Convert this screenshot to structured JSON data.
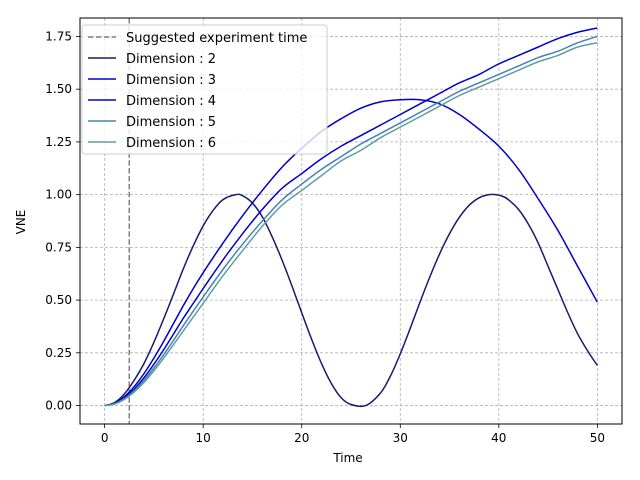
{
  "chart_data": {
    "type": "line",
    "title": "",
    "xlabel": "Time",
    "ylabel": "VNE",
    "xlim": [
      -2.5,
      52.5
    ],
    "ylim": [
      -0.0875,
      1.8375
    ],
    "xticks": [
      0,
      10,
      20,
      30,
      40,
      50
    ],
    "yticks": [
      0.0,
      0.25,
      0.5,
      0.75,
      1.0,
      1.25,
      1.5,
      1.75
    ],
    "xtick_labels": [
      "0",
      "10",
      "20",
      "30",
      "40",
      "50"
    ],
    "ytick_labels": [
      "0.00",
      "0.25",
      "0.50",
      "0.75",
      "1.00",
      "1.25",
      "1.50",
      "1.75"
    ],
    "grid": true,
    "legend_position": "top-left",
    "suggested_time": {
      "label": "Suggested experiment time",
      "x": 2.5,
      "color": "#808080"
    },
    "series": [
      {
        "name": "Dimension : 2",
        "color": "#191970",
        "x": [
          0,
          1,
          2,
          3,
          4,
          5,
          6,
          7,
          8,
          9,
          10,
          11,
          12,
          13.3,
          14,
          15,
          16,
          17,
          18,
          19,
          20,
          21,
          22,
          23,
          24,
          25,
          26.5,
          28,
          29,
          30,
          31,
          32,
          33,
          34,
          35,
          36,
          37,
          38,
          39,
          39.7,
          40.5,
          41,
          42,
          43,
          44,
          45,
          46,
          47,
          48,
          49,
          50
        ],
        "values": [
          0.0,
          0.014,
          0.055,
          0.12,
          0.2,
          0.3,
          0.412,
          0.53,
          0.65,
          0.758,
          0.852,
          0.925,
          0.976,
          1.0,
          0.995,
          0.96,
          0.895,
          0.8,
          0.69,
          0.568,
          0.44,
          0.315,
          0.2,
          0.105,
          0.037,
          0.005,
          0.0,
          0.06,
          0.14,
          0.245,
          0.365,
          0.49,
          0.61,
          0.72,
          0.815,
          0.893,
          0.95,
          0.985,
          1.0,
          1.0,
          0.99,
          0.975,
          0.93,
          0.86,
          0.77,
          0.66,
          0.55,
          0.44,
          0.34,
          0.26,
          0.19
        ]
      },
      {
        "name": "Dimension : 3",
        "color": "#0000cd",
        "x": [
          0,
          1,
          2,
          3,
          4,
          5,
          6,
          7,
          8,
          9,
          10,
          12,
          14,
          16,
          18,
          20,
          22,
          24,
          26,
          28,
          30,
          32,
          34,
          36,
          38,
          40,
          42,
          44,
          46,
          48,
          50
        ],
        "values": [
          0.0,
          0.01,
          0.042,
          0.09,
          0.152,
          0.225,
          0.305,
          0.39,
          0.475,
          0.555,
          0.63,
          0.77,
          0.9,
          1.02,
          1.13,
          1.22,
          1.3,
          1.36,
          1.41,
          1.44,
          1.45,
          1.45,
          1.43,
          1.38,
          1.31,
          1.23,
          1.12,
          0.98,
          0.83,
          0.66,
          0.49
        ]
      },
      {
        "name": "Dimension : 4",
        "color": "#0000cd",
        "x": [
          0,
          1,
          2,
          3,
          4,
          5,
          6,
          7,
          8,
          9,
          10,
          12,
          14,
          16,
          18,
          20,
          22,
          24,
          26,
          28,
          30,
          32,
          34,
          36,
          38,
          40,
          42,
          44,
          46,
          48,
          50
        ],
        "values": [
          0.0,
          0.009,
          0.036,
          0.078,
          0.132,
          0.196,
          0.265,
          0.34,
          0.415,
          0.485,
          0.555,
          0.69,
          0.815,
          0.93,
          1.03,
          1.1,
          1.17,
          1.23,
          1.28,
          1.33,
          1.38,
          1.43,
          1.48,
          1.53,
          1.57,
          1.62,
          1.66,
          1.7,
          1.74,
          1.77,
          1.79
        ]
      },
      {
        "name": "Dimension : 5",
        "color": "#4682b4",
        "x": [
          0,
          1,
          2,
          3,
          4,
          5,
          6,
          7,
          8,
          9,
          10,
          12,
          14,
          16,
          18,
          20,
          22,
          24,
          26,
          28,
          30,
          32,
          34,
          36,
          38,
          40,
          42,
          44,
          46,
          48,
          50
        ],
        "values": [
          0.0,
          0.008,
          0.032,
          0.07,
          0.12,
          0.178,
          0.242,
          0.31,
          0.38,
          0.448,
          0.515,
          0.645,
          0.765,
          0.875,
          0.975,
          1.05,
          1.12,
          1.18,
          1.24,
          1.29,
          1.34,
          1.39,
          1.44,
          1.49,
          1.53,
          1.57,
          1.61,
          1.65,
          1.68,
          1.72,
          1.75
        ]
      },
      {
        "name": "Dimension : 6",
        "color": "#5f9ea0",
        "x": [
          0,
          1,
          2,
          3,
          4,
          5,
          6,
          7,
          8,
          9,
          10,
          12,
          14,
          16,
          18,
          20,
          22,
          24,
          26,
          28,
          30,
          32,
          34,
          36,
          38,
          40,
          42,
          44,
          46,
          48,
          50
        ],
        "values": [
          0.0,
          0.007,
          0.029,
          0.064,
          0.11,
          0.165,
          0.225,
          0.29,
          0.355,
          0.42,
          0.485,
          0.615,
          0.735,
          0.85,
          0.95,
          1.02,
          1.09,
          1.16,
          1.21,
          1.27,
          1.32,
          1.37,
          1.42,
          1.47,
          1.51,
          1.55,
          1.59,
          1.63,
          1.66,
          1.7,
          1.72
        ]
      }
    ]
  }
}
